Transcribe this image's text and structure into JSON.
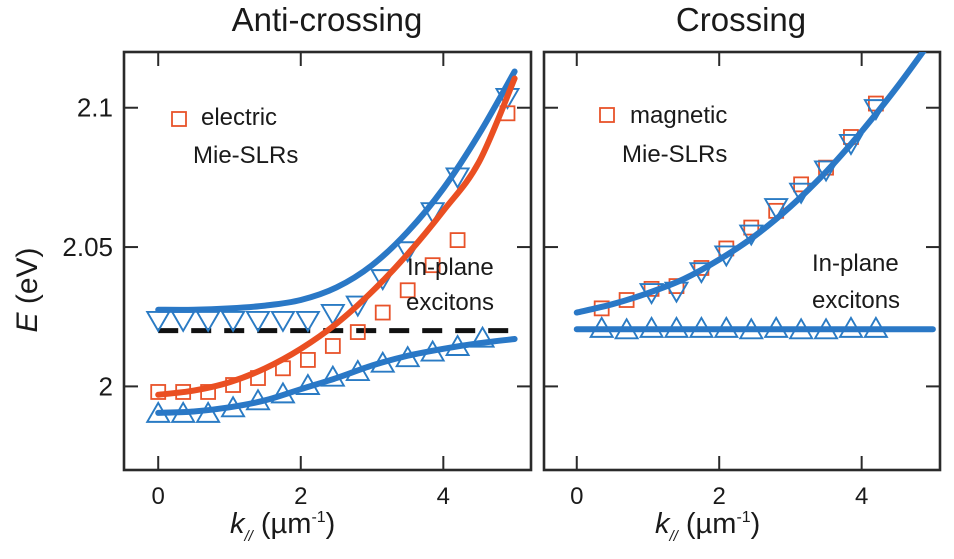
{
  "chart_data": [
    {
      "type": "scatter",
      "title": "Anti-crossing",
      "xlabel": "k// (µm-1)",
      "xlabel_parts": {
        "symbol": "k",
        "subscript": "//",
        "unit_open": " (µm",
        "superscript": "-1",
        "unit_close": ")"
      },
      "ylabel": "E (eV)",
      "ylabel_parts": {
        "symbol": "E",
        "unit": " (eV)"
      },
      "xlim": [
        -0.48,
        5.23
      ],
      "ylim": [
        1.97,
        2.12
      ],
      "xticks": [
        0,
        2,
        4
      ],
      "xtick_labels": [
        "0",
        "2",
        "4"
      ],
      "yticks": [
        2.0,
        2.05,
        2.1
      ],
      "ytick_labels": [
        "2",
        "2.05",
        "2.1"
      ],
      "grid": false,
      "legend": {
        "position": "top-left",
        "marker": "square",
        "line1": "electric",
        "line2": "Mie-SLRs"
      },
      "annotation": {
        "line1": "In-plane",
        "line2": "excitons"
      },
      "exciton_level": 2.02,
      "series": [
        {
          "name": "upper polariton (data)",
          "marker": "triangle-down",
          "color": "#2a7bc4",
          "x": [
            0.0,
            0.35,
            0.7,
            1.05,
            1.4,
            1.75,
            2.1,
            2.45,
            2.8,
            3.15,
            3.5,
            3.85,
            4.2,
            4.9
          ],
          "y": [
            2.0235,
            2.0235,
            2.0235,
            2.0235,
            2.0235,
            2.0235,
            2.0235,
            2.026,
            2.029,
            2.0385,
            2.0485,
            2.0625,
            2.075,
            2.1035
          ]
        },
        {
          "name": "electric Mie-SLRs (data)",
          "marker": "square",
          "color": "#e8532a",
          "x": [
            0.0,
            0.35,
            0.7,
            1.05,
            1.4,
            1.75,
            2.1,
            2.45,
            2.8,
            3.15,
            3.5,
            3.85,
            4.2,
            4.9
          ],
          "y": [
            1.998,
            1.998,
            1.998,
            2.0005,
            2.003,
            2.0065,
            2.0095,
            2.0145,
            2.0195,
            2.0265,
            2.0345,
            2.0435,
            2.0525,
            2.098
          ]
        },
        {
          "name": "lower polariton (data)",
          "marker": "triangle-up",
          "color": "#2a7bc4",
          "x": [
            0.0,
            0.35,
            0.7,
            1.05,
            1.4,
            1.75,
            2.1,
            2.45,
            2.8,
            3.15,
            3.5,
            3.85,
            4.2,
            4.55
          ],
          "y": [
            1.9905,
            1.9905,
            1.9905,
            1.9925,
            1.995,
            1.9975,
            2.0005,
            2.0035,
            2.0055,
            2.0085,
            2.0105,
            2.0125,
            2.0145,
            2.0175
          ]
        }
      ],
      "fits": [
        {
          "name": "upper polariton fit",
          "color": "#2a78c6",
          "x": [
            0,
            0.5,
            1.0,
            1.5,
            2.0,
            2.5,
            3.0,
            3.5,
            4.0,
            4.5,
            5.0
          ],
          "y": [
            2.0275,
            2.0275,
            2.028,
            2.029,
            2.031,
            2.0355,
            2.0435,
            2.0555,
            2.071,
            2.0905,
            2.113
          ]
        },
        {
          "name": "electric Mie-SLR fit",
          "color": "#ea4f22",
          "x": [
            0,
            0.5,
            1.0,
            1.5,
            2.0,
            2.5,
            3.0,
            3.5,
            4.0,
            4.5,
            5.0
          ],
          "y": [
            1.997,
            1.9985,
            2.0015,
            2.0065,
            2.0135,
            2.0225,
            2.034,
            2.0475,
            2.063,
            2.0805,
            2.1105
          ]
        },
        {
          "name": "lower polariton fit",
          "color": "#2a78c6",
          "x": [
            0,
            0.5,
            1.0,
            1.5,
            2.0,
            2.5,
            3.0,
            3.5,
            4.0,
            4.5,
            5.0
          ],
          "y": [
            1.9905,
            1.991,
            1.9925,
            1.995,
            1.999,
            2.003,
            2.0075,
            2.011,
            2.0135,
            2.0155,
            2.017
          ]
        }
      ]
    },
    {
      "type": "scatter",
      "title": "Crossing",
      "xlabel": "k// (µm-1)",
      "xlabel_parts": {
        "symbol": "k",
        "subscript": "//",
        "unit_open": " (µm",
        "superscript": "-1",
        "unit_close": ")"
      },
      "xlim": [
        -0.46,
        5.1
      ],
      "ylim": [
        1.97,
        2.12
      ],
      "xticks": [
        0,
        2,
        4
      ],
      "xtick_labels": [
        "0",
        "2",
        "4"
      ],
      "yticks": [
        2.0,
        2.05,
        2.1
      ],
      "grid": false,
      "legend": {
        "position": "top-left",
        "marker": "square",
        "line1": "magnetic",
        "line2": "Mie-SLRs"
      },
      "annotation": {
        "line1": "In-plane",
        "line2": "excitons"
      },
      "series": [
        {
          "name": "magnetic Mie-SLRs (data)",
          "marker": "square",
          "color": "#e8532a",
          "x": [
            0.35,
            0.7,
            1.05,
            1.4,
            1.75,
            2.1,
            2.45,
            2.8,
            3.15,
            3.5,
            3.85,
            4.2
          ],
          "y": [
            2.028,
            2.031,
            2.035,
            2.036,
            2.0425,
            2.0495,
            2.057,
            2.063,
            2.0725,
            2.0785,
            2.0895,
            2.1015
          ]
        },
        {
          "name": "magnetic branch (triangle-down data)",
          "marker": "triangle-down",
          "color": "#2a7bc4",
          "x": [
            1.05,
            1.4,
            1.75,
            2.1,
            2.45,
            2.8,
            3.15,
            3.5,
            3.85,
            4.2
          ],
          "y": [
            2.0335,
            2.034,
            2.041,
            2.047,
            2.0545,
            2.064,
            2.0695,
            2.0775,
            2.087,
            2.0995
          ]
        },
        {
          "name": "in-plane excitons (data)",
          "marker": "triangle-up",
          "color": "#2a7bc4",
          "x": [
            0.35,
            0.7,
            1.05,
            1.4,
            1.75,
            2.1,
            2.45,
            2.8,
            3.15,
            3.5,
            3.85,
            4.2
          ],
          "y": [
            2.021,
            2.0205,
            2.021,
            2.021,
            2.021,
            2.021,
            2.0205,
            2.021,
            2.0205,
            2.0205,
            2.021,
            2.021
          ]
        }
      ],
      "fits": [
        {
          "name": "magnetic Mie-SLR fit",
          "color": "#2a78c6",
          "x": [
            0,
            0.5,
            1.0,
            1.5,
            2.0,
            2.5,
            3.0,
            3.5,
            4.0,
            4.5,
            5.0
          ],
          "y": [
            2.0265,
            2.0295,
            2.0335,
            2.0385,
            2.0455,
            2.054,
            2.0645,
            2.077,
            2.0915,
            2.1075,
            2.125
          ]
        },
        {
          "name": "exciton fit",
          "color": "#2a78c6",
          "x": [
            0,
            5.0
          ],
          "y": [
            2.0205,
            2.0205
          ]
        }
      ]
    }
  ]
}
